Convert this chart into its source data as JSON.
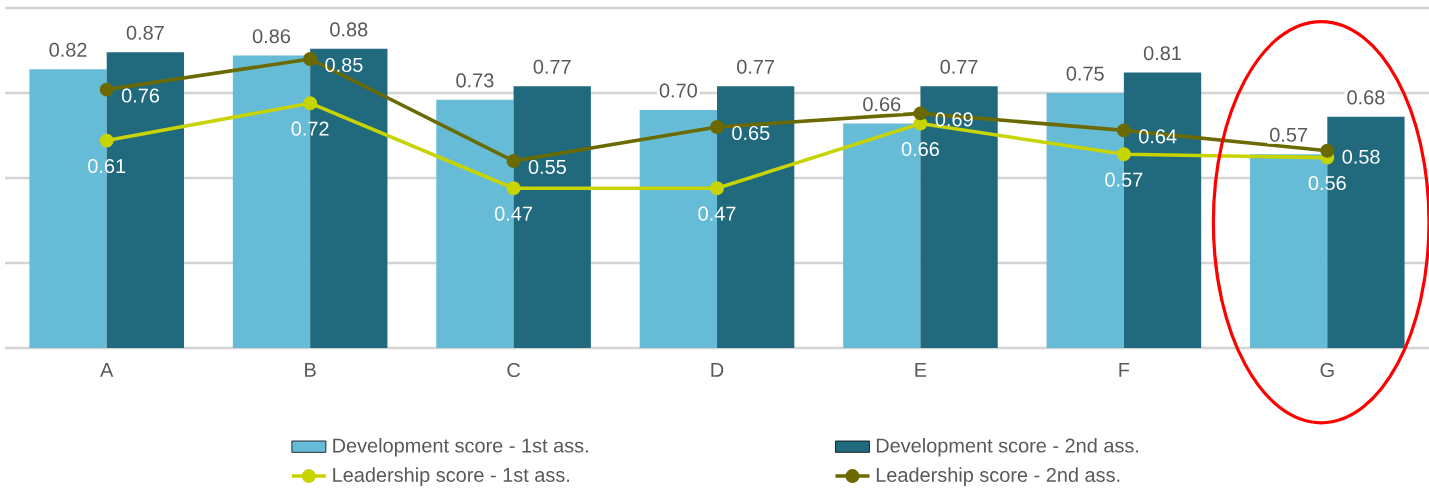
{
  "chart_data": {
    "type": "bar",
    "categories": [
      "A",
      "B",
      "C",
      "D",
      "E",
      "F",
      "G"
    ],
    "series": [
      {
        "name": "Development score - 1st ass.",
        "color": "#66bcd6",
        "values": [
          0.82,
          0.86,
          0.73,
          0.7,
          0.66,
          0.75,
          0.57
        ],
        "value_labels": [
          "0.82",
          "0.86",
          "0.73",
          "0.70",
          "0.66",
          "0.75",
          "0.57"
        ]
      },
      {
        "name": "Development score - 2nd ass.",
        "color": "#216a7e",
        "values": [
          0.87,
          0.88,
          0.77,
          0.77,
          0.77,
          0.81,
          0.68
        ],
        "value_labels": [
          "0.87",
          "0.88",
          "0.77",
          "0.77",
          "0.77",
          "0.81",
          "0.68"
        ]
      },
      {
        "name": "Leadership score - 1st ass.",
        "type": "line",
        "color": "#c8d400",
        "values": [
          0.61,
          0.72,
          0.47,
          0.47,
          0.66,
          0.57,
          0.56
        ],
        "value_labels": [
          "0.61",
          "0.72",
          "0.47",
          "0.47",
          "0.66",
          "0.57",
          "0.56"
        ]
      },
      {
        "name": "Leadership score - 2nd ass.",
        "type": "line",
        "color": "#6b6a00",
        "values": [
          0.76,
          0.85,
          0.55,
          0.65,
          0.69,
          0.64,
          0.58
        ],
        "value_labels": [
          "0.76",
          "0.85",
          "0.55",
          "0.65",
          "0.69",
          "0.64",
          "0.58"
        ]
      }
    ],
    "ylim": [
      0,
      1
    ],
    "yticks": [
      {
        "value": 0,
        "label": null
      },
      {
        "value": 0.25,
        "label": null
      },
      {
        "value": 0.5,
        "label": null
      },
      {
        "value": 0.75,
        "label": null
      },
      {
        "value": 1,
        "label": null
      }
    ],
    "tick_labels": "x",
    "grid": "y",
    "legend": "bottom",
    "marker": "circle"
  }
}
